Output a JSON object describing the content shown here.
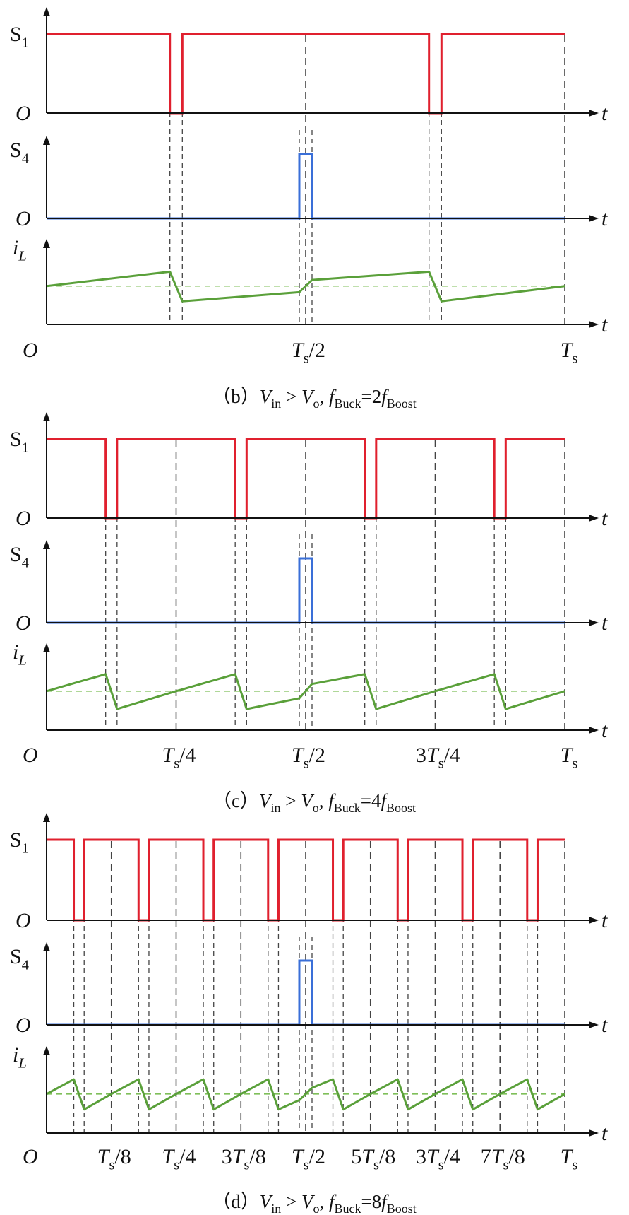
{
  "colors": {
    "s1": "#e0202e",
    "s4": "#3a6fd8",
    "il": "#5aa03a",
    "axis": "#111111",
    "guide": "#444444",
    "avg": "#7fbf5a"
  },
  "signals": {
    "s1": "S",
    "s1_sub": "1",
    "s4": "S",
    "s4_sub": "4",
    "il": "i",
    "il_sub": "L",
    "origin": "O",
    "time": "t"
  },
  "panels": [
    {
      "ratio": 2,
      "caption": {
        "prefix": "（b）",
        "v_in": "V",
        "v_in_sub": "in",
        "gt": ">",
        "v_o": "V",
        "v_o_sub": "o",
        "sep": ",",
        "f_buck": "f",
        "f_buck_sub": "Buck",
        "eq": "=2",
        "f_boost": "f",
        "f_boost_sub": "Boost"
      },
      "ticks": [
        {
          "pre": "",
          "T": "T",
          "s": "s",
          "post": "/2",
          "frac": 0.5
        },
        {
          "pre": "",
          "T": "T",
          "s": "s",
          "post": "",
          "frac": 1.0
        }
      ]
    },
    {
      "ratio": 4,
      "caption": {
        "prefix": "（c）",
        "v_in": "V",
        "v_in_sub": "in",
        "gt": ">",
        "v_o": "V",
        "v_o_sub": "o",
        "sep": ",",
        "f_buck": "f",
        "f_buck_sub": "Buck",
        "eq": "=4",
        "f_boost": "f",
        "f_boost_sub": "Boost"
      },
      "ticks": [
        {
          "pre": "",
          "T": "T",
          "s": "s",
          "post": "/4",
          "frac": 0.25
        },
        {
          "pre": "",
          "T": "T",
          "s": "s",
          "post": "/2",
          "frac": 0.5
        },
        {
          "pre": "3",
          "T": "T",
          "s": "s",
          "post": "/4",
          "frac": 0.75
        },
        {
          "pre": "",
          "T": "T",
          "s": "s",
          "post": "",
          "frac": 1.0
        }
      ]
    },
    {
      "ratio": 8,
      "caption": {
        "prefix": "（d）",
        "v_in": "V",
        "v_in_sub": "in",
        "gt": ">",
        "v_o": "V",
        "v_o_sub": "o",
        "sep": ",",
        "f_buck": "f",
        "f_buck_sub": "Buck",
        "eq": "=8",
        "f_boost": "f",
        "f_boost_sub": "Boost"
      },
      "ticks": [
        {
          "pre": "",
          "T": "T",
          "s": "s",
          "post": "/8",
          "frac": 0.125
        },
        {
          "pre": "",
          "T": "T",
          "s": "s",
          "post": "/4",
          "frac": 0.25
        },
        {
          "pre": "3",
          "T": "T",
          "s": "s",
          "post": "/8",
          "frac": 0.375
        },
        {
          "pre": "",
          "T": "T",
          "s": "s",
          "post": "/2",
          "frac": 0.5
        },
        {
          "pre": "5",
          "T": "T",
          "s": "s",
          "post": "/8",
          "frac": 0.625
        },
        {
          "pre": "3",
          "T": "T",
          "s": "s",
          "post": "/4",
          "frac": 0.75
        },
        {
          "pre": "7",
          "T": "T",
          "s": "s",
          "post": "/8",
          "frac": 0.875
        },
        {
          "pre": "",
          "T": "T",
          "s": "s",
          "post": "",
          "frac": 1.0
        }
      ]
    }
  ]
}
